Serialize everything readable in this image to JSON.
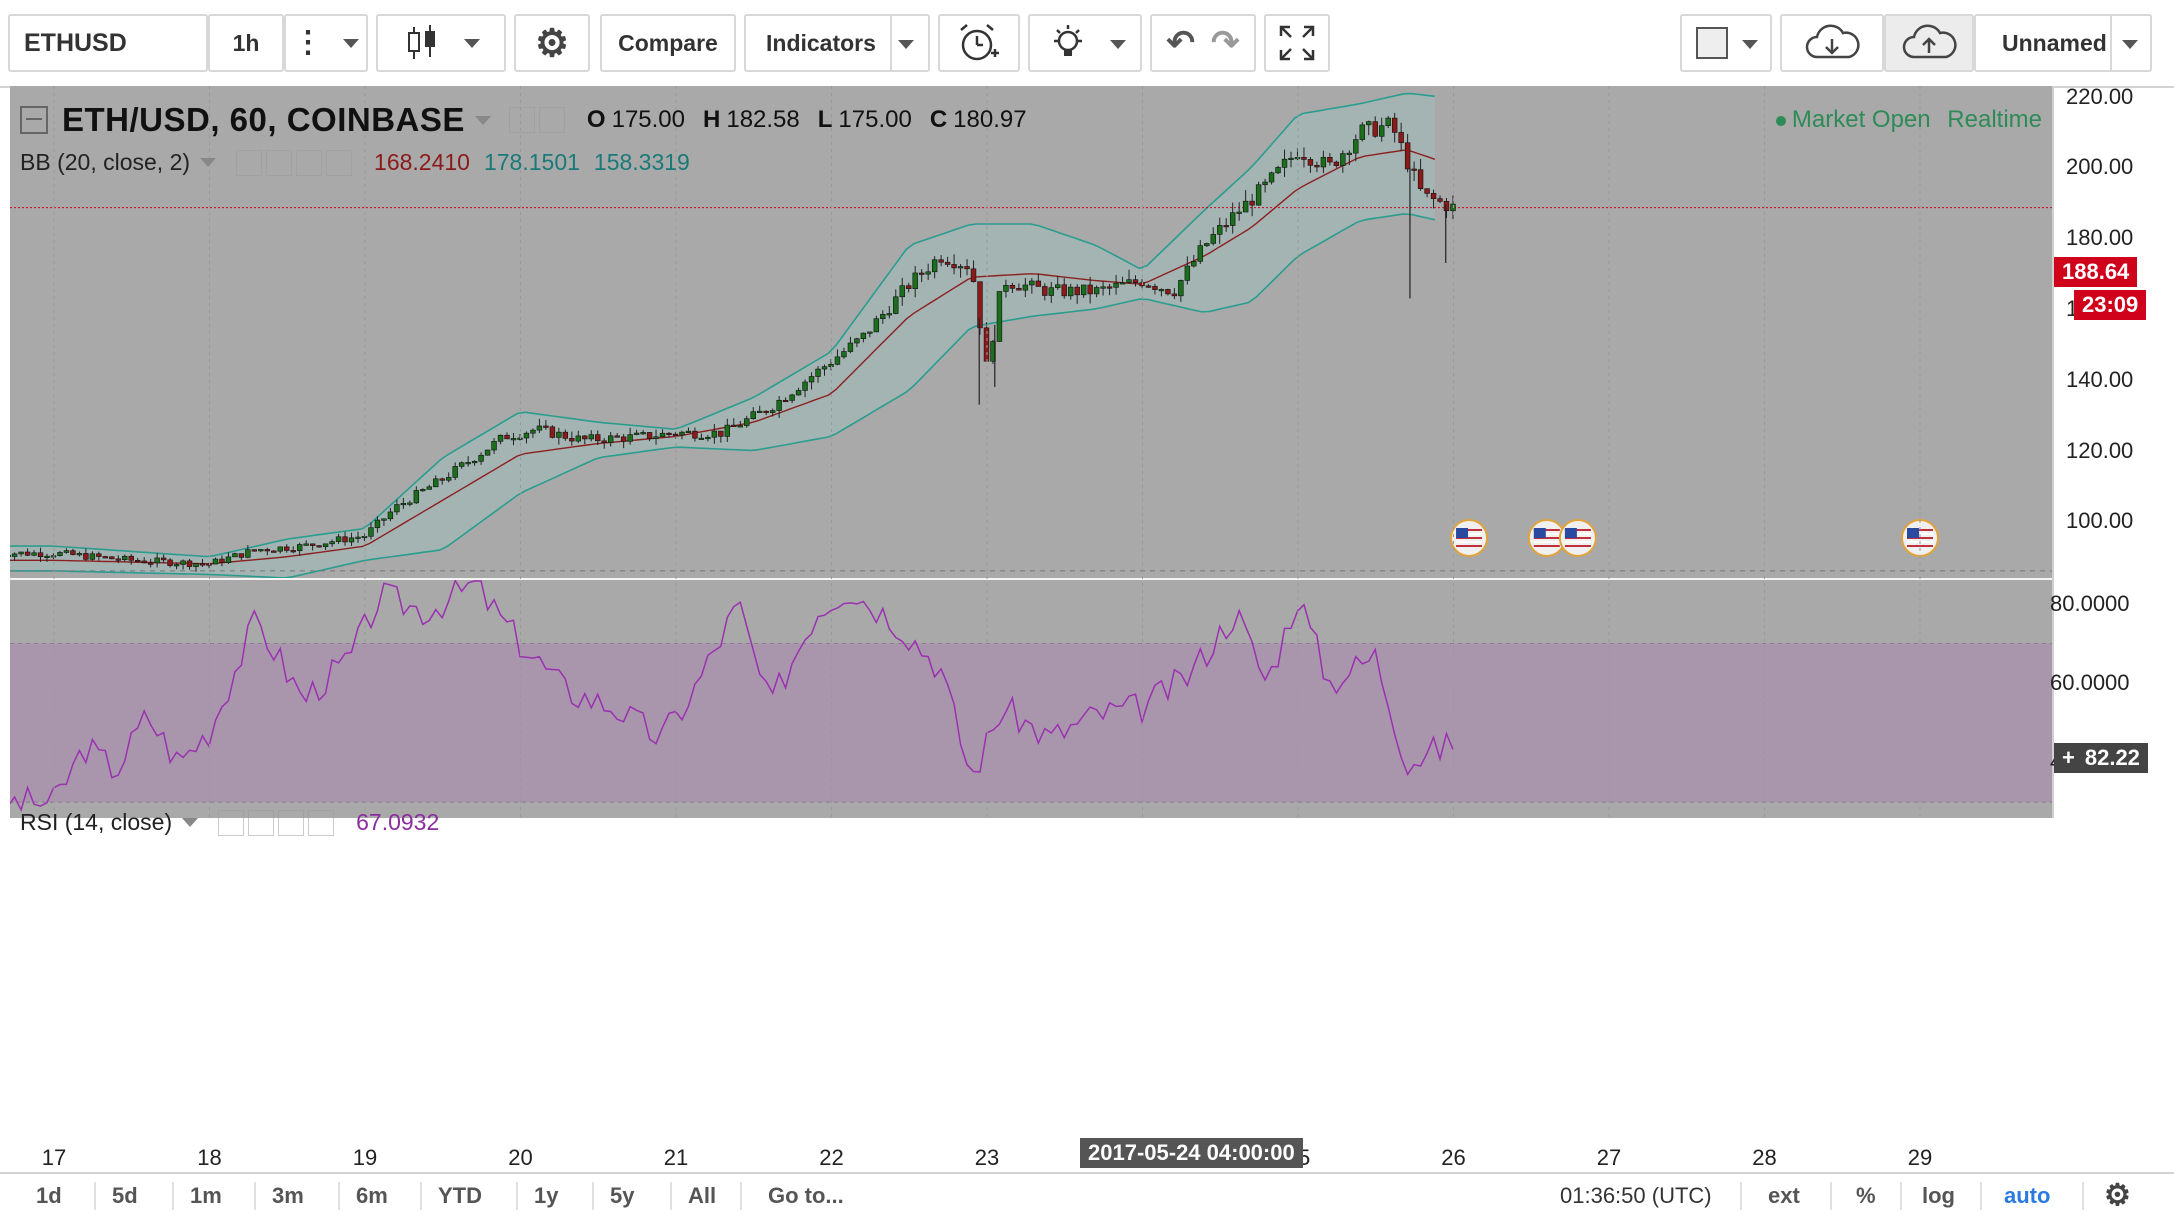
{
  "toolbar": {
    "symbol": "ETHUSD",
    "interval": "1h",
    "compare_label": "Compare",
    "indicators_label": "Indicators",
    "layout_name": "Unnamed"
  },
  "legend": {
    "title": "ETH/USD, 60, COINBASE",
    "o_label": "O",
    "o": "175.00",
    "h_label": "H",
    "h": "182.58",
    "l_label": "L",
    "l": "175.00",
    "c_label": "C",
    "c": "180.97",
    "bb_label": "BB (20, close, 2)",
    "bb_mid": "168.2410",
    "bb_upper": "178.1501",
    "bb_lower": "158.3319",
    "market_status": "Market Open",
    "realtime": "Realtime"
  },
  "rsi": {
    "label": "RSI (14, close)",
    "value": "67.0932"
  },
  "price_axis": {
    "ticks": [
      "220.00",
      "200.00",
      "180.00",
      "160.00",
      "140.00",
      "120.00",
      "100.00"
    ],
    "last_price": "188.64",
    "countdown": "23:09",
    "crosshair": "82.22"
  },
  "rsi_axis": {
    "ticks": [
      "80.0000",
      "60.0000",
      "40.0000"
    ]
  },
  "time_axis": {
    "labels": [
      "17",
      "18",
      "19",
      "20",
      "21",
      "22",
      "23",
      "25",
      "26",
      "27",
      "28",
      "29"
    ],
    "crosshair": "2017-05-24 04:00:00"
  },
  "footer": {
    "ranges": [
      "1d",
      "5d",
      "1m",
      "3m",
      "6m",
      "YTD",
      "1y",
      "5y",
      "All"
    ],
    "goto": "Go to...",
    "clock": "01:36:50 (UTC)",
    "ext": "ext",
    "percent": "%",
    "log": "log",
    "auto": "auto"
  },
  "colors": {
    "pane_bg": "#a9a9a9",
    "bb_fill": "#a3b6b5",
    "bb_band": "#2a9d8f",
    "bb_mid": "#8b2020",
    "rsi_band": "#a993ad",
    "rsi_line": "#9b30b0",
    "price_tag": "#d0021b",
    "up_candle": "#1b6e1b",
    "down_candle": "#8b1a1a"
  },
  "chart_data": {
    "type": "candlestick",
    "symbol": "ETH/USD",
    "exchange": "COINBASE",
    "interval_minutes": 60,
    "ylim": [
      84,
      223
    ],
    "x_days": [
      "17",
      "18",
      "19",
      "20",
      "21",
      "22",
      "23",
      "24",
      "25",
      "26",
      "27",
      "28",
      "29"
    ],
    "price_path": [
      [
        17,
        91
      ],
      [
        17.5,
        89
      ],
      [
        18,
        88
      ],
      [
        18.3,
        92
      ],
      [
        18.6,
        93
      ],
      [
        19,
        96
      ],
      [
        19.2,
        104
      ],
      [
        19.5,
        112
      ],
      [
        19.9,
        124
      ],
      [
        20.1,
        126
      ],
      [
        20.4,
        123
      ],
      [
        20.8,
        124
      ],
      [
        21,
        125
      ],
      [
        21.3,
        125
      ],
      [
        21.6,
        132
      ],
      [
        21.9,
        142
      ],
      [
        22.2,
        152
      ],
      [
        22.5,
        167
      ],
      [
        22.7,
        175
      ],
      [
        22.9,
        172
      ],
      [
        23,
        143
      ],
      [
        23.1,
        168
      ],
      [
        23.4,
        165
      ],
      [
        23.7,
        165
      ],
      [
        24,
        168
      ],
      [
        24.2,
        165
      ],
      [
        24.4,
        178
      ],
      [
        24.6,
        187
      ],
      [
        24.8,
        195
      ],
      [
        25,
        205
      ],
      [
        25.2,
        200
      ],
      [
        25.4,
        210
      ],
      [
        25.6,
        212
      ],
      [
        25.8,
        192
      ],
      [
        26,
        188.64
      ]
    ],
    "bb_upper_path": [
      [
        17,
        93
      ],
      [
        18,
        90
      ],
      [
        18.5,
        95
      ],
      [
        19,
        98
      ],
      [
        19.5,
        118
      ],
      [
        20,
        131
      ],
      [
        20.5,
        128
      ],
      [
        21,
        126
      ],
      [
        21.5,
        135
      ],
      [
        22,
        148
      ],
      [
        22.5,
        178
      ],
      [
        22.9,
        184
      ],
      [
        23.3,
        184
      ],
      [
        23.7,
        178
      ],
      [
        24,
        171
      ],
      [
        24.4,
        188
      ],
      [
        24.7,
        200
      ],
      [
        25,
        215
      ],
      [
        25.4,
        218
      ],
      [
        25.7,
        221
      ],
      [
        25.9,
        220
      ]
    ],
    "bb_lower_path": [
      [
        17,
        86
      ],
      [
        18,
        85
      ],
      [
        18.5,
        84
      ],
      [
        19,
        89
      ],
      [
        19.5,
        92
      ],
      [
        20,
        108
      ],
      [
        20.5,
        118
      ],
      [
        21,
        121
      ],
      [
        21.5,
        120
      ],
      [
        22,
        124
      ],
      [
        22.5,
        137
      ],
      [
        22.9,
        155
      ],
      [
        23.3,
        158
      ],
      [
        23.7,
        160
      ],
      [
        24,
        163
      ],
      [
        24.4,
        159
      ],
      [
        24.7,
        162
      ],
      [
        25,
        175
      ],
      [
        25.4,
        185
      ],
      [
        25.7,
        187
      ],
      [
        25.9,
        185
      ]
    ],
    "bb_mid_path": [
      [
        17,
        89
      ],
      [
        18,
        88
      ],
      [
        18.5,
        90
      ],
      [
        19,
        93
      ],
      [
        19.5,
        106
      ],
      [
        20,
        119
      ],
      [
        20.5,
        122
      ],
      [
        21,
        124
      ],
      [
        21.5,
        128
      ],
      [
        22,
        136
      ],
      [
        22.5,
        158
      ],
      [
        22.9,
        169
      ],
      [
        23.3,
        170
      ],
      [
        23.7,
        168
      ],
      [
        24,
        167
      ],
      [
        24.4,
        175
      ],
      [
        24.7,
        183
      ],
      [
        25,
        194
      ],
      [
        25.4,
        203
      ],
      [
        25.7,
        205
      ],
      [
        25.9,
        202
      ]
    ],
    "rsi_ylim": [
      26,
      86
    ],
    "rsi_band": [
      30,
      70
    ],
    "rsi_path": [
      [
        17,
        30
      ],
      [
        17.2,
        44
      ],
      [
        17.4,
        38
      ],
      [
        17.6,
        52
      ],
      [
        17.8,
        40
      ],
      [
        18,
        48
      ],
      [
        18.3,
        76
      ],
      [
        18.6,
        56
      ],
      [
        18.9,
        66
      ],
      [
        19.1,
        82
      ],
      [
        19.4,
        78
      ],
      [
        19.7,
        85
      ],
      [
        20,
        70
      ],
      [
        20.3,
        58
      ],
      [
        20.6,
        54
      ],
      [
        20.9,
        46
      ],
      [
        21.1,
        57
      ],
      [
        21.4,
        80
      ],
      [
        21.6,
        54
      ],
      [
        21.9,
        78
      ],
      [
        22.1,
        84
      ],
      [
        22.4,
        76
      ],
      [
        22.7,
        64
      ],
      [
        22.9,
        36
      ],
      [
        23.1,
        54
      ],
      [
        23.4,
        46
      ],
      [
        23.7,
        52
      ],
      [
        24,
        54
      ],
      [
        24.3,
        62
      ],
      [
        24.6,
        78
      ],
      [
        24.8,
        60
      ],
      [
        25,
        82
      ],
      [
        25.2,
        60
      ],
      [
        25.5,
        67
      ],
      [
        25.7,
        40
      ],
      [
        26,
        45
      ]
    ]
  }
}
